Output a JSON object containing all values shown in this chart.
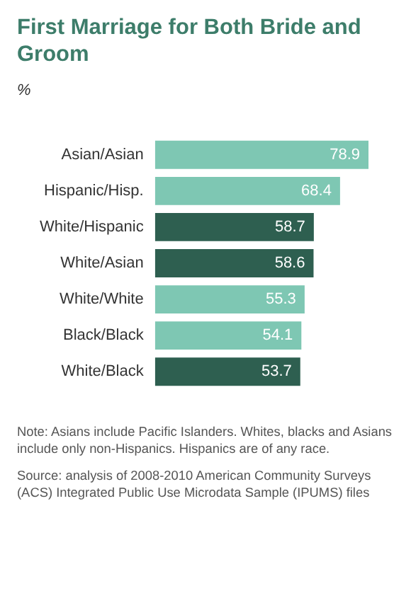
{
  "chart_data": {
    "type": "bar",
    "orientation": "horizontal",
    "title": "First Marriage for Both Bride and Groom",
    "ylabel": "%",
    "categories": [
      "Asian/Asian",
      "Hispanic/Hisp.",
      "White/Hispanic",
      "White/Asian",
      "White/White",
      "Black/Black",
      "White/Black"
    ],
    "values": [
      78.9,
      68.4,
      58.7,
      58.6,
      55.3,
      54.1,
      53.7
    ],
    "colors": [
      "#7ec7b3",
      "#7ec7b3",
      "#2e5f50",
      "#2e5f50",
      "#7ec7b3",
      "#7ec7b3",
      "#2e5f50"
    ],
    "data_labels": true,
    "legend": false,
    "annotations": [
      "Note: Asians include Pacific Islanders. Whites, blacks and Asians include only non-Hispanics. Hispanics are of any race.",
      "Source: analysis of 2008-2010 American Community Surveys (ACS) Integrated Public Use Microdata Sample (IPUMS) files"
    ]
  }
}
